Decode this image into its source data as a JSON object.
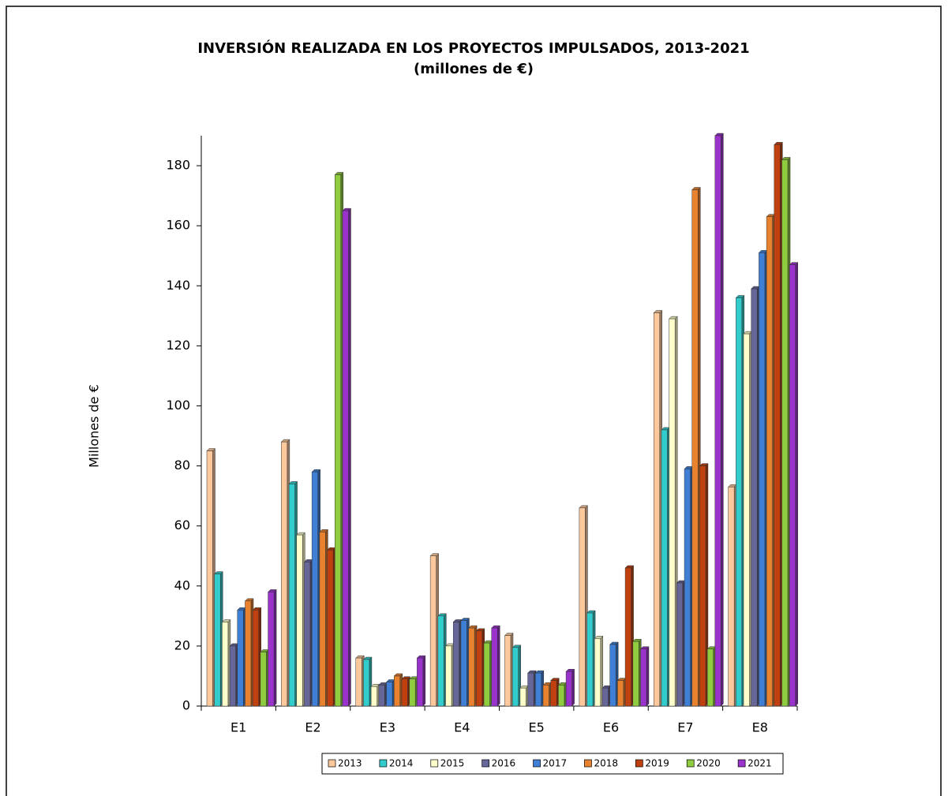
{
  "chart_data": {
    "type": "bar",
    "title": "INVERSIÓN REALIZADA EN LOS PROYECTOS IMPULSADOS, 2013-2021",
    "subtitle": "(millones de €)",
    "y_label": "Millones de €",
    "categories": [
      "E1",
      "E2",
      "E3",
      "E4",
      "E5",
      "E6",
      "E7",
      "E8"
    ],
    "series": [
      {
        "name": "2013",
        "color": "#fcc89c",
        "values": [
          85,
          88,
          16,
          50,
          23.5,
          66,
          131,
          73
        ]
      },
      {
        "name": "2014",
        "color": "#33cccc",
        "values": [
          44,
          74,
          15.5,
          30,
          19.5,
          31,
          92,
          136
        ]
      },
      {
        "name": "2015",
        "color": "#ffffcc",
        "values": [
          28,
          57,
          6.5,
          20,
          6,
          22.5,
          129,
          124
        ]
      },
      {
        "name": "2016",
        "color": "#666699",
        "values": [
          20,
          48,
          7,
          28,
          11,
          6,
          41,
          139
        ]
      },
      {
        "name": "2017",
        "color": "#3f7fd6",
        "values": [
          32,
          78,
          8,
          28.5,
          11,
          20.5,
          79,
          151
        ]
      },
      {
        "name": "2018",
        "color": "#e8822e",
        "values": [
          35,
          58,
          10,
          26,
          7,
          8.5,
          172,
          163
        ]
      },
      {
        "name": "2019",
        "color": "#c0410f",
        "values": [
          32,
          52,
          9,
          25,
          8.5,
          46,
          80,
          187
        ]
      },
      {
        "name": "2020",
        "color": "#8fcc3f",
        "values": [
          18,
          177,
          9,
          21,
          7,
          21.5,
          19,
          182
        ]
      },
      {
        "name": "2021",
        "color": "#9933cc",
        "values": [
          38,
          165,
          16,
          26,
          11.5,
          19,
          190,
          147
        ]
      }
    ],
    "ylim": [
      0,
      190
    ],
    "yticks": [
      0,
      20,
      40,
      60,
      80,
      100,
      120,
      140,
      160,
      180
    ]
  }
}
